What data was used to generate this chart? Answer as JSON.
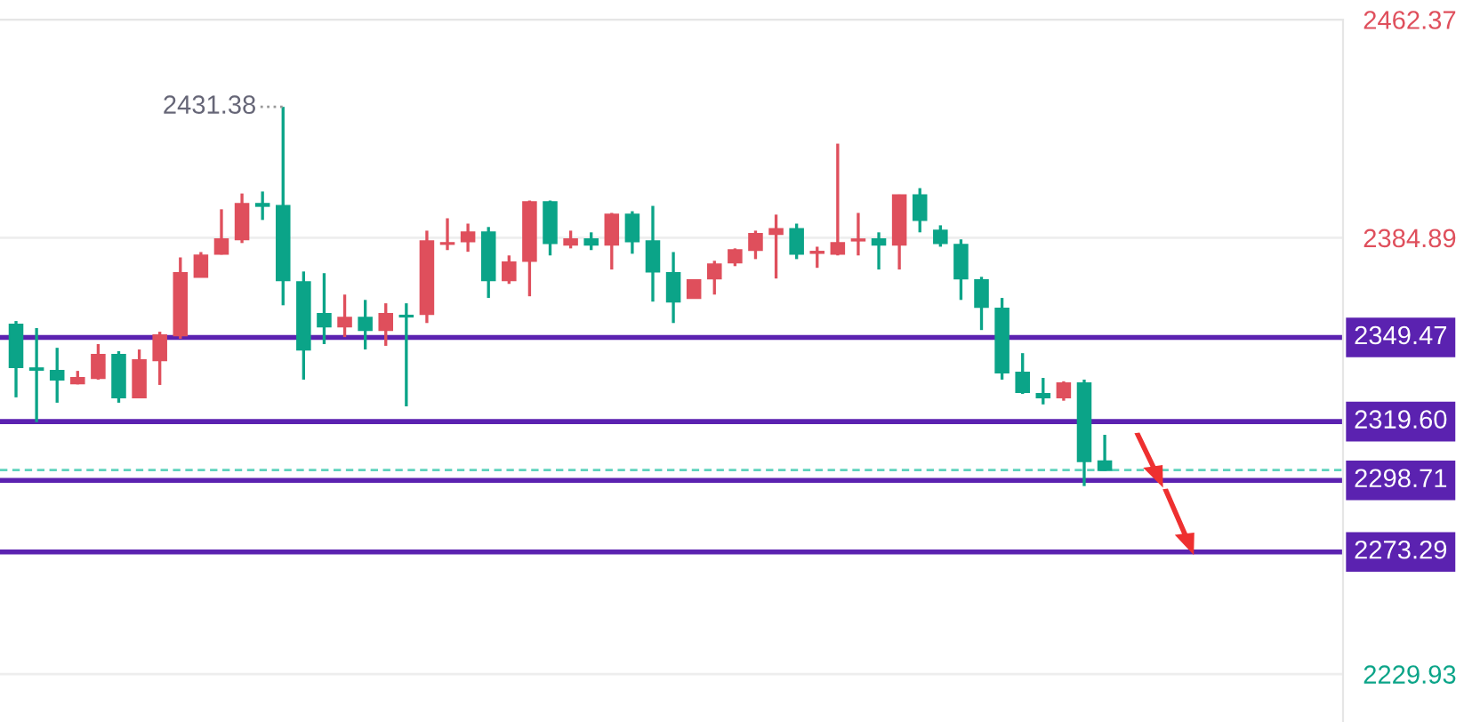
{
  "chart_data": {
    "type": "candlestick",
    "categories": [
      null,
      null,
      null,
      null,
      null,
      null,
      null,
      null,
      null,
      null,
      null,
      null,
      null,
      null,
      null,
      null,
      null,
      null,
      null,
      null,
      null,
      null,
      null,
      null,
      null,
      null,
      null,
      null,
      null,
      null,
      null,
      null,
      null,
      null,
      null,
      null,
      null,
      null,
      null,
      null,
      null,
      null,
      null,
      null,
      null,
      null,
      null,
      null,
      null,
      null,
      null,
      null,
      null,
      null,
      null,
      null,
      null,
      null,
      null,
      null,
      null,
      null,
      null,
      null,
      null
    ],
    "ohlc": [
      [
        2354.0,
        2355.3,
        2328.2,
        2338.9
      ],
      [
        2338.5,
        2352.8,
        2319.4,
        2338.0
      ],
      [
        2337.6,
        2345.8,
        2326.3,
        2334.5
      ],
      [
        2333.2,
        2337.6,
        2332.8,
        2335.1
      ],
      [
        2335.1,
        2347.1,
        2334.5,
        2343.3
      ],
      [
        2343.3,
        2344.6,
        2326.3,
        2328.2
      ],
      [
        2328.2,
        2345.2,
        2327.9,
        2341.4
      ],
      [
        2341.4,
        2351.5,
        2332.6,
        2350.2
      ],
      [
        2350.2,
        2377.9,
        2349.0,
        2372.3
      ],
      [
        2371.0,
        2379.8,
        2370.8,
        2378.6
      ],
      [
        2379.2,
        2395.0,
        2378.9,
        2384.3
      ],
      [
        2384.3,
        2400.6,
        2383.0,
        2396.9
      ],
      [
        2396.9,
        2401.3,
        2391.2,
        2396.2
      ],
      [
        2396.2,
        2431.38,
        2360.9,
        2369.8
      ],
      [
        2369.1,
        2372.9,
        2334.5,
        2345.2
      ],
      [
        2357.8,
        2372.3,
        2347.1,
        2353.4
      ],
      [
        2353.4,
        2364.7,
        2349.6,
        2356.5
      ],
      [
        2356.5,
        2362.8,
        2345.2,
        2352.1
      ],
      [
        2352.1,
        2361.6,
        2346.5,
        2357.8
      ],
      [
        2357.2,
        2361.6,
        2325.0,
        2356.9
      ],
      [
        2357.8,
        2387.4,
        2354.6,
        2383.6
      ],
      [
        2382.7,
        2391.8,
        2380.5,
        2383.0
      ],
      [
        2383.6,
        2389.9,
        2379.9,
        2386.8
      ],
      [
        2386.8,
        2388.7,
        2363.5,
        2369.8
      ],
      [
        2369.8,
        2378.6,
        2368.5,
        2376.1
      ],
      [
        2376.7,
        2398.1,
        2364.1,
        2397.5
      ],
      [
        2397.5,
        2398.1,
        2378.6,
        2383.0
      ],
      [
        2382.4,
        2387.4,
        2381.1,
        2384.3
      ],
      [
        2384.3,
        2386.8,
        2380.5,
        2382.4
      ],
      [
        2382.4,
        2393.7,
        2373.6,
        2393.1
      ],
      [
        2393.1,
        2394.3,
        2379.2,
        2383.6
      ],
      [
        2383.6,
        2396.2,
        2362.2,
        2372.9
      ],
      [
        2372.3,
        2379.8,
        2354.6,
        2362.2
      ],
      [
        2363.5,
        2370.0,
        2363.3,
        2369.8
      ],
      [
        2370.4,
        2376.7,
        2364.7,
        2375.4
      ],
      [
        2376.1,
        2381.1,
        2374.8,
        2380.5
      ],
      [
        2380.5,
        2387.4,
        2377.3,
        2386.2
      ],
      [
        2386.2,
        2393.1,
        2370.4,
        2388.0
      ],
      [
        2388.0,
        2389.9,
        2377.3,
        2379.2
      ],
      [
        2379.5,
        2381.7,
        2374.2,
        2379.9
      ],
      [
        2379.2,
        2418.3,
        2378.6,
        2383.0
      ],
      [
        2383.9,
        2393.7,
        2378.6,
        2384.3
      ],
      [
        2384.3,
        2386.8,
        2373.6,
        2382.4
      ],
      [
        2382.4,
        2400.2,
        2373.6,
        2400.0
      ],
      [
        2400.0,
        2402.5,
        2386.8,
        2391.2
      ],
      [
        2387.4,
        2389.3,
        2381.7,
        2383.0
      ],
      [
        2382.4,
        2384.3,
        2362.8,
        2370.4
      ],
      [
        2369.8,
        2371.0,
        2352.1,
        2360.3
      ],
      [
        2359.7,
        2363.5,
        2334.5,
        2337.0
      ],
      [
        2337.0,
        2343.9,
        2329.4,
        2330.1
      ],
      [
        2329.4,
        2335.1,
        2325.7,
        2328.2
      ],
      [
        2328.2,
        2333.9,
        2327.0,
        2333.2
      ],
      [
        2333.2,
        2334.5,
        2296.7,
        2305.5
      ],
      [
        2305.5,
        2314.9,
        2302.2,
        2302.4
      ],
      null,
      null,
      null,
      null,
      null,
      null,
      null,
      null,
      null,
      null,
      null
    ],
    "colors": [
      "#0ba488",
      "#0ba488",
      "#0ba488",
      "#df4f5c",
      "#df4f5c",
      "#0ba488",
      "#df4f5c",
      "#df4f5c",
      "#df4f5c",
      "#df4f5c",
      "#df4f5c",
      "#df4f5c",
      "#0ba488",
      "#0ba488",
      "#0ba488",
      "#0ba488",
      "#df4f5c",
      "#0ba488",
      "#df4f5c",
      "#0ba488",
      "#df4f5c",
      "#df4f5c",
      "#df4f5c",
      "#0ba488",
      "#df4f5c",
      "#df4f5c",
      "#0ba488",
      "#df4f5c",
      "#0ba488",
      "#df4f5c",
      "#0ba488",
      "#0ba488",
      "#0ba488",
      "#df4f5c",
      "#df4f5c",
      "#df4f5c",
      "#df4f5c",
      "#df4f5c",
      "#0ba488",
      "#df4f5c",
      "#df4f5c",
      "#df4f5c",
      "#0ba488",
      "#df4f5c",
      "#0ba488",
      "#0ba488",
      "#0ba488",
      "#0ba488",
      "#0ba488",
      "#0ba488",
      "#0ba488",
      "#df4f5c",
      "#0ba488",
      "#0ba488",
      null,
      null,
      null,
      null,
      null,
      null,
      null,
      null,
      null,
      null,
      null
    ],
    "ylim": [
      2212.9,
      2462.37
    ],
    "yticks": [
      2229.93,
      2384.89,
      2462.37
    ],
    "tick_labels": "y",
    "grid": "y",
    "annotations": [
      "2431.38"
    ],
    "ref_lines": [
      {
        "axis": "y",
        "value": 2349.47,
        "label": "2349.47",
        "color": "#5b22b0"
      },
      {
        "axis": "y",
        "value": 2319.6,
        "label": "2319.60",
        "color": "#5b22b0"
      },
      {
        "axis": "y",
        "value": 2302.4,
        "label": null,
        "color": "#5fd3bd",
        "line_style": "dashed"
      },
      {
        "axis": "y",
        "value": 2298.71,
        "label": "2298.71",
        "color": "#5b22b0"
      },
      {
        "axis": "y",
        "value": 2273.29,
        "label": "2273.29",
        "color": "#5b22b0"
      }
    ]
  }
}
